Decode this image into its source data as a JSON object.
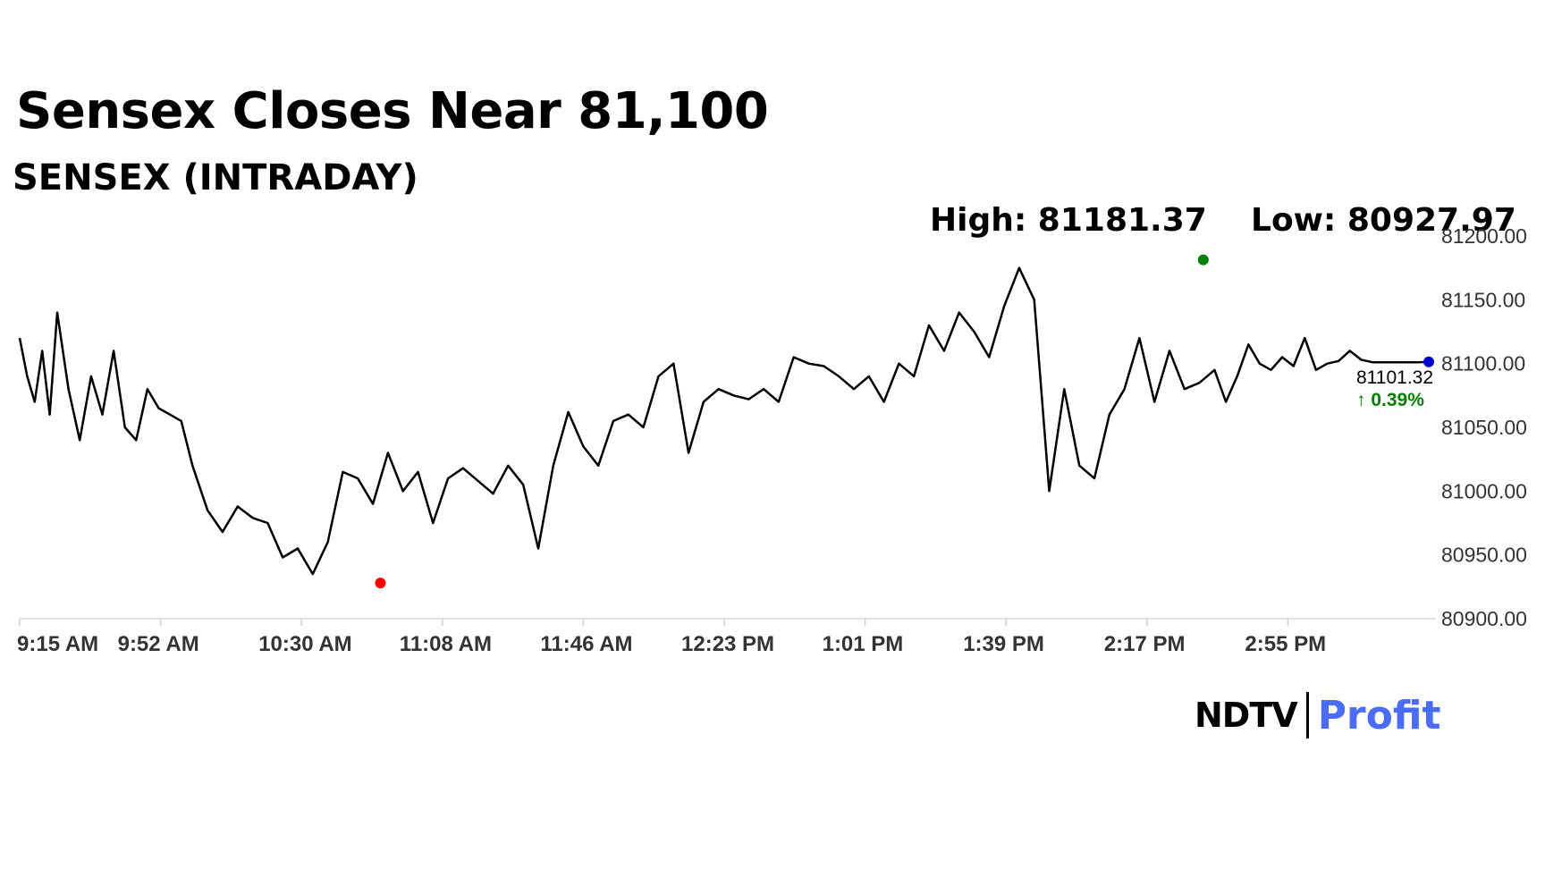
{
  "title": "Sensex Closes Near 81,100",
  "subtitle": "SENSEX (INTRADAY)",
  "high_label": "High: 81181.37",
  "low_label": "Low: 80927.97",
  "logo": {
    "brand": "NDTV",
    "product": "Profit"
  },
  "chart_data": {
    "type": "line",
    "title": "Sensex Closes Near 81,100",
    "subtitle": "SENSEX (INTRADAY)",
    "x_ticks": [
      "9:15 AM",
      "9:52 AM",
      "10:30 AM",
      "11:08 AM",
      "11:46 AM",
      "12:23 PM",
      "1:01 PM",
      "1:39 PM",
      "2:17 PM",
      "2:55 PM"
    ],
    "y_ticks": [
      "80900.00",
      "80950.00",
      "81000.00",
      "81050.00",
      "81100.00",
      "81150.00",
      "81200.00"
    ],
    "ylim": [
      80900,
      81200
    ],
    "x_range_minutes": [
      0,
      375
    ],
    "high": {
      "value": 81181.37,
      "time": "2:30 PM",
      "color": "#008000"
    },
    "low": {
      "value": 80927.97,
      "time": "10:51 AM",
      "color": "#ff0000"
    },
    "last": {
      "value": "81101.32",
      "change": "↑ 0.39%",
      "color": "#0000cc",
      "change_color": "#008000"
    },
    "line_color": "#000000",
    "series": [
      {
        "x": [
          0,
          2,
          4,
          6,
          8,
          10,
          13,
          16,
          19,
          22,
          25,
          28,
          31,
          34,
          37,
          40,
          43,
          46,
          50,
          54,
          58,
          62,
          66,
          70,
          74,
          78,
          82,
          86,
          90,
          94,
          98,
          102,
          106,
          110,
          114,
          118,
          122,
          126,
          130,
          134,
          138,
          142,
          146,
          150,
          154,
          158,
          162,
          166,
          170,
          174,
          178,
          182,
          186,
          190,
          194,
          198,
          202,
          206,
          210,
          214,
          218,
          222,
          226,
          230,
          234,
          238,
          242,
          246,
          250,
          254,
          258,
          262,
          266,
          270,
          274,
          278,
          282,
          286,
          290,
          294,
          298,
          302,
          306,
          310,
          314,
          318,
          321,
          324,
          327,
          330,
          333,
          336,
          339,
          342,
          345,
          348,
          351,
          354,
          357,
          360,
          363,
          366,
          369,
          372,
          375
        ],
        "y": [
          81120,
          81090,
          81070,
          81110,
          81060,
          81140,
          81080,
          81040,
          81090,
          81060,
          81110,
          81050,
          81040,
          81080,
          81065,
          81060,
          81055,
          81020,
          80985,
          80968,
          80988,
          80979,
          80975,
          80948,
          80955,
          80935,
          80960,
          81015,
          81010,
          80990,
          81030,
          81000,
          81015,
          80975,
          81010,
          81018,
          81008,
          80998,
          81020,
          81005,
          80955,
          81020,
          81062,
          81035,
          81020,
          81055,
          81060,
          81050,
          81090,
          81100,
          81030,
          81070,
          81080,
          81075,
          81072,
          81080,
          81070,
          81105,
          81100,
          81098,
          81090,
          81080,
          81090,
          81070,
          81100,
          81090,
          81130,
          81110,
          81140,
          81125,
          81105,
          81145,
          81175,
          81150,
          81000,
          81080,
          81020,
          81010,
          81060,
          81080,
          81120,
          81070,
          81110,
          81080,
          81085,
          81095,
          81070,
          81090,
          81115,
          81100,
          81095,
          81105,
          81098,
          81120,
          81095,
          81100,
          81102,
          81110,
          81103,
          81101,
          81101,
          81101,
          81101,
          81101,
          81101.32
        ]
      }
    ]
  }
}
